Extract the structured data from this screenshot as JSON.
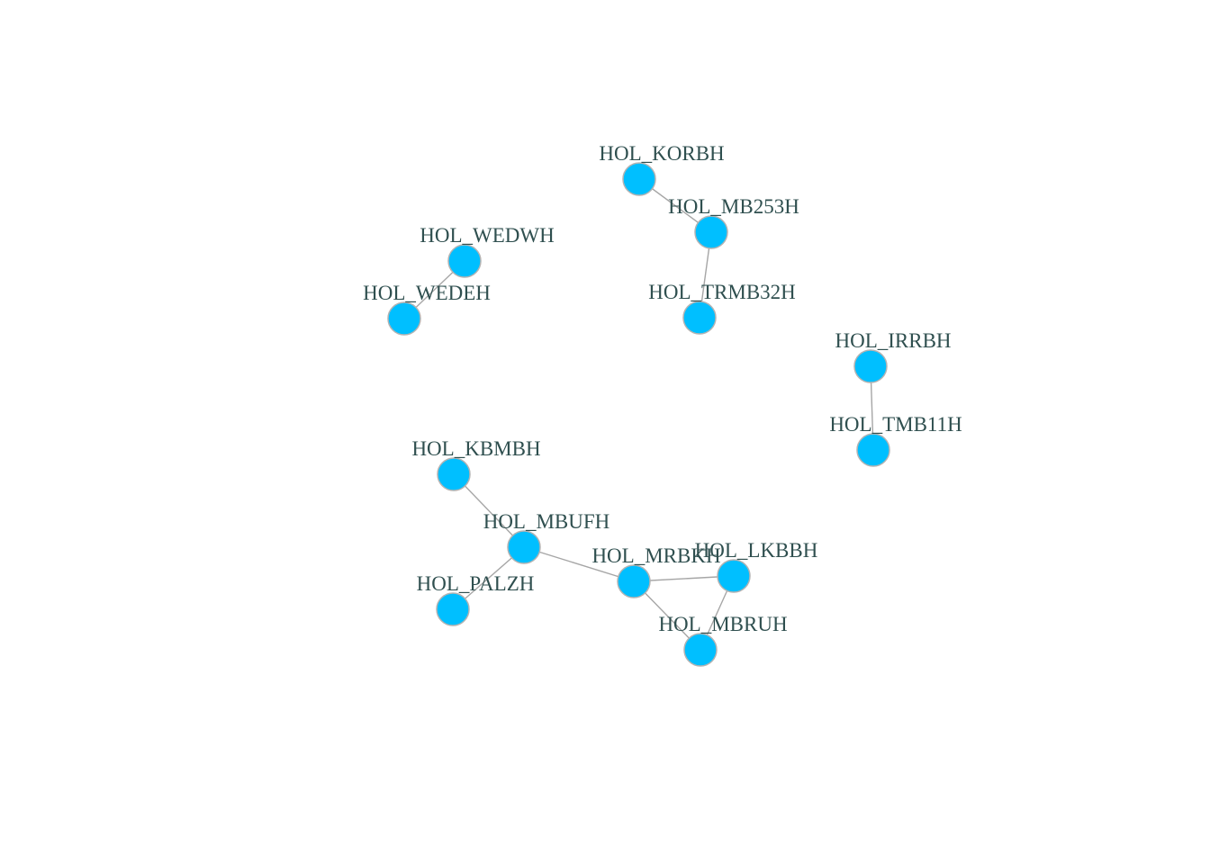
{
  "graph": {
    "colors": {
      "node_fill": "#00bfff",
      "node_stroke": "#b3b3b3",
      "edge": "#a6a6a6",
      "label": "#2f4f4f"
    },
    "nodes": [
      {
        "id": "HOL_KORBH",
        "label": "HOL_KORBH"
      },
      {
        "id": "HOL_MB253H",
        "label": "HOL_MB253H"
      },
      {
        "id": "HOL_TRMB32H",
        "label": "HOL_TRMB32H"
      },
      {
        "id": "HOL_WEDWH",
        "label": "HOL_WEDWH"
      },
      {
        "id": "HOL_WEDEH",
        "label": "HOL_WEDEH"
      },
      {
        "id": "HOL_IRRBH",
        "label": "HOL_IRRBH"
      },
      {
        "id": "HOL_TMB11H",
        "label": "HOL_TMB11H"
      },
      {
        "id": "HOL_KBMBH",
        "label": "HOL_KBMBH"
      },
      {
        "id": "HOL_MBUFH",
        "label": "HOL_MBUFH"
      },
      {
        "id": "HOL_PALZH",
        "label": "HOL_PALZH"
      },
      {
        "id": "HOL_MRBKH",
        "label": "HOL_MRBKH"
      },
      {
        "id": "HOL_LKBBH",
        "label": "HOL_LKBBH"
      },
      {
        "id": "HOL_MBRUH",
        "label": "HOL_MBRUH"
      }
    ],
    "edges": [
      {
        "source": "HOL_KORBH",
        "target": "HOL_MB253H"
      },
      {
        "source": "HOL_MB253H",
        "target": "HOL_TRMB32H"
      },
      {
        "source": "HOL_WEDWH",
        "target": "HOL_WEDEH"
      },
      {
        "source": "HOL_IRRBH",
        "target": "HOL_TMB11H"
      },
      {
        "source": "HOL_KBMBH",
        "target": "HOL_MBUFH"
      },
      {
        "source": "HOL_MBUFH",
        "target": "HOL_PALZH"
      },
      {
        "source": "HOL_MBUFH",
        "target": "HOL_MRBKH"
      },
      {
        "source": "HOL_MRBKH",
        "target": "HOL_LKBBH"
      },
      {
        "source": "HOL_MRBKH",
        "target": "HOL_MBRUH"
      },
      {
        "source": "HOL_LKBBH",
        "target": "HOL_MBRUH"
      }
    ]
  }
}
